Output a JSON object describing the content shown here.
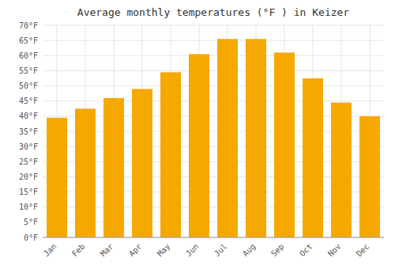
{
  "chart_data": {
    "type": "bar",
    "title": "Average monthly temperatures (°F ) in Keizer",
    "categories": [
      "Jan",
      "Feb",
      "Mar",
      "Apr",
      "May",
      "Jun",
      "Jul",
      "Aug",
      "Sep",
      "Oct",
      "Nov",
      "Dec"
    ],
    "values": [
      39.5,
      42.5,
      46.0,
      49.0,
      54.5,
      60.5,
      65.5,
      65.5,
      61.0,
      52.5,
      44.5,
      40.0
    ],
    "color": "#F5A800",
    "ylim": [
      0,
      70
    ],
    "yticks": [
      {
        "value": 0,
        "label": "0°F"
      },
      {
        "value": 5,
        "label": "5°F"
      },
      {
        "value": 10,
        "label": "10°F"
      },
      {
        "value": 15,
        "label": "15°F"
      },
      {
        "value": 20,
        "label": "20°F"
      },
      {
        "value": 25,
        "label": "25°F"
      },
      {
        "value": 30,
        "label": "30°F"
      },
      {
        "value": 35,
        "label": "35°F"
      },
      {
        "value": 40,
        "label": "40°F"
      },
      {
        "value": 45,
        "label": "45°F"
      },
      {
        "value": 50,
        "label": "50°F"
      },
      {
        "value": 55,
        "label": "55°F"
      },
      {
        "value": 60,
        "label": "60°F"
      },
      {
        "value": 65,
        "label": "65°F"
      },
      {
        "value": 70,
        "label": "70°F"
      }
    ],
    "grid": true
  }
}
